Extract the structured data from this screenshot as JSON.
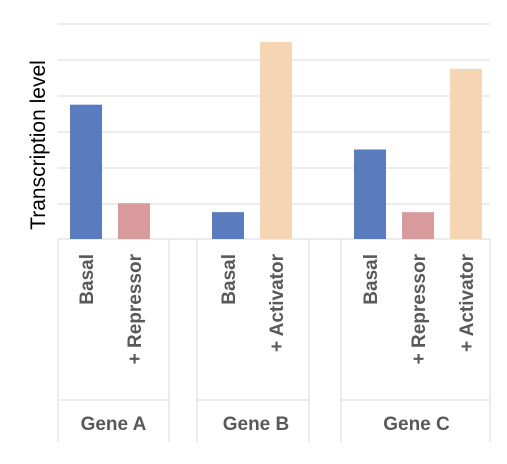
{
  "chart_data": {
    "type": "bar",
    "ylabel": "Transcription level",
    "ylim": [
      0,
      11
    ],
    "grid": true,
    "legend": "none",
    "colors": {
      "Basal": "#5a7cbf",
      "+ Repressor": "#d89a9a",
      "+ Activator": "#f6d5b4"
    },
    "groups": [
      {
        "name": "Gene A",
        "bars": [
          {
            "label": "Basal",
            "value": 7.5
          },
          {
            "label": "+ Repressor",
            "value": 2.0
          }
        ]
      },
      {
        "name": "Gene B",
        "bars": [
          {
            "label": "Basal",
            "value": 1.5
          },
          {
            "label": "+ Activator",
            "value": 11.0
          }
        ]
      },
      {
        "name": "Gene C",
        "bars": [
          {
            "label": "Basal",
            "value": 5.0
          },
          {
            "label": "+ Repressor",
            "value": 1.5
          },
          {
            "label": "+ Activator",
            "value": 9.5
          }
        ]
      }
    ]
  }
}
